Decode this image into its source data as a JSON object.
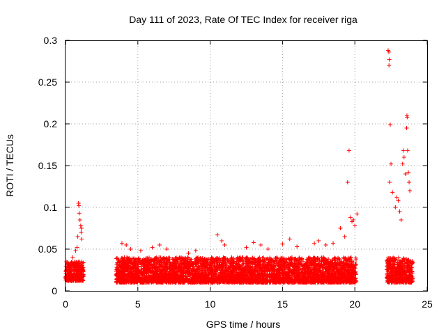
{
  "chart_data": {
    "type": "scatter",
    "title": "Day 111 of 2023, Rate Of TEC Index for receiver riga",
    "xlabel": "GPS time / hours",
    "ylabel": "ROTI / TECUs",
    "xlim": [
      0,
      25
    ],
    "ylim": [
      0,
      0.3
    ],
    "x_ticks": [
      0,
      5,
      10,
      15,
      20,
      25
    ],
    "x_tick_labels": [
      "0",
      "5",
      "10",
      "15",
      "20",
      "25"
    ],
    "y_ticks": [
      0,
      0.05,
      0.1,
      0.15,
      0.2,
      0.25,
      0.3
    ],
    "y_tick_labels": [
      "0",
      "0.05",
      "0.1",
      "0.15",
      "0.2",
      "0.25",
      "0.3"
    ],
    "grid": true,
    "marker": "+",
    "marker_color": "#ff0000",
    "clusters": [
      {
        "x_range": [
          0.0,
          1.25
        ],
        "y_base": [
          0.012,
          0.035
        ]
      },
      {
        "x_range": [
          3.5,
          20.1
        ],
        "y_base": [
          0.01,
          0.04
        ]
      },
      {
        "x_range": [
          22.2,
          24.0
        ],
        "y_base": [
          0.01,
          0.04
        ]
      }
    ],
    "points": [
      [
        0.2,
        0.033
      ],
      [
        0.5,
        0.04
      ],
      [
        0.7,
        0.048
      ],
      [
        0.8,
        0.052
      ],
      [
        0.85,
        0.065
      ],
      [
        0.9,
        0.105
      ],
      [
        0.92,
        0.102
      ],
      [
        0.95,
        0.093
      ],
      [
        1.0,
        0.085
      ],
      [
        1.05,
        0.078
      ],
      [
        1.08,
        0.07
      ],
      [
        1.1,
        0.075
      ],
      [
        1.12,
        0.062
      ],
      [
        3.9,
        0.057
      ],
      [
        4.2,
        0.055
      ],
      [
        4.5,
        0.05
      ],
      [
        5.2,
        0.048
      ],
      [
        6.0,
        0.052
      ],
      [
        6.5,
        0.055
      ],
      [
        7.0,
        0.05
      ],
      [
        8.5,
        0.045
      ],
      [
        9.0,
        0.048
      ],
      [
        10.5,
        0.067
      ],
      [
        10.8,
        0.06
      ],
      [
        11.0,
        0.055
      ],
      [
        12.5,
        0.052
      ],
      [
        13.0,
        0.058
      ],
      [
        13.5,
        0.055
      ],
      [
        14.0,
        0.05
      ],
      [
        15.0,
        0.056
      ],
      [
        15.5,
        0.062
      ],
      [
        16.0,
        0.053
      ],
      [
        17.2,
        0.057
      ],
      [
        17.5,
        0.06
      ],
      [
        18.0,
        0.055
      ],
      [
        18.5,
        0.057
      ],
      [
        19.0,
        0.075
      ],
      [
        19.3,
        0.065
      ],
      [
        19.5,
        0.13
      ],
      [
        19.6,
        0.168
      ],
      [
        19.7,
        0.088
      ],
      [
        19.8,
        0.083
      ],
      [
        19.9,
        0.085
      ],
      [
        20.0,
        0.078
      ],
      [
        20.15,
        0.092
      ],
      [
        22.3,
        0.288
      ],
      [
        22.35,
        0.286
      ],
      [
        22.38,
        0.277
      ],
      [
        22.36,
        0.27
      ],
      [
        22.45,
        0.199
      ],
      [
        22.5,
        0.152
      ],
      [
        22.4,
        0.13
      ],
      [
        22.6,
        0.118
      ],
      [
        22.8,
        0.1
      ],
      [
        22.9,
        0.112
      ],
      [
        23.0,
        0.108
      ],
      [
        23.1,
        0.095
      ],
      [
        23.2,
        0.085
      ],
      [
        23.3,
        0.152
      ],
      [
        23.35,
        0.168
      ],
      [
        23.4,
        0.16
      ],
      [
        23.5,
        0.14
      ],
      [
        23.6,
        0.21
      ],
      [
        23.62,
        0.208
      ],
      [
        23.58,
        0.195
      ],
      [
        23.65,
        0.168
      ],
      [
        23.7,
        0.142
      ],
      [
        23.75,
        0.13
      ],
      [
        23.8,
        0.12
      ]
    ]
  }
}
